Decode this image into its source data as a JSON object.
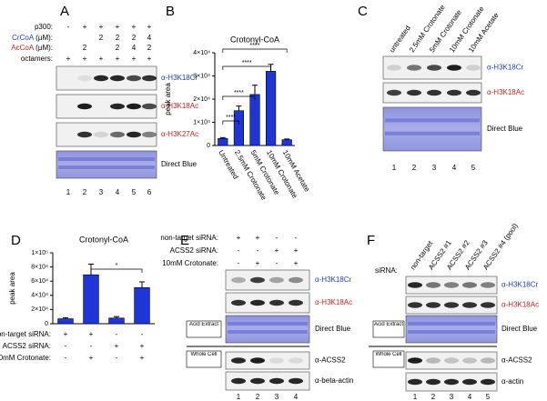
{
  "blots": {
    "A": {
      "label": "A",
      "header": [
        {
          "name": "p300:",
          "cells": [
            "-",
            "+",
            "+",
            "+",
            "+",
            "+"
          ]
        },
        {
          "name": "CrCoA",
          "unit": "(μM):",
          "cells": [
            null,
            null,
            "2",
            "2",
            "2",
            "4"
          ]
        },
        {
          "name": "AcCoA",
          "unit": "(μM):",
          "cells": [
            null,
            "2",
            null,
            "2",
            "4",
            "2"
          ]
        },
        {
          "name": "octamers:",
          "cells": [
            "+",
            "+",
            "+",
            "+",
            "+",
            "+"
          ]
        }
      ],
      "rows": [
        "α-H3K18Cr",
        "α-H3K18Ac",
        "α-H3K27Ac",
        "Direct Blue"
      ],
      "lanes": [
        1,
        2,
        3,
        4,
        5,
        6
      ]
    },
    "C": {
      "label": "C",
      "columns": [
        "untreated",
        "2.5mM Crotonate",
        "5mM Crotonate",
        "10mM Crotonate",
        "10mM Acetate"
      ],
      "rows": [
        "α-H3K18Cr",
        "α-H3K18Ac",
        "Direct Blue"
      ],
      "lanes": [
        1,
        2,
        3,
        4,
        5
      ]
    },
    "E": {
      "label": "E",
      "header": [
        {
          "name": "non-target siRNA:",
          "cells": [
            "+",
            "+",
            "-",
            "-"
          ]
        },
        {
          "name": "ACSS2 siRNA:",
          "cells": [
            "-",
            "-",
            "+",
            "+"
          ]
        },
        {
          "name": "10mM Crotonate:",
          "cells": [
            "-",
            "+",
            "-",
            "+"
          ]
        }
      ],
      "rows": [
        "α-H3K18Cr",
        "α-H3K18Ac",
        "Direct Blue",
        "α-ACSS2",
        "α-beta-actin"
      ],
      "boxes": [
        "Acid Extract",
        "Whole Cell"
      ],
      "lanes": [
        1,
        2,
        3,
        4
      ]
    },
    "F": {
      "label": "F",
      "prefix": "siRNA:",
      "columns": [
        "non-target",
        "ACSS2 #1",
        "ACSS2 #2",
        "ACSS2 #3",
        "ACSS2 #4 (pool)"
      ],
      "rows": [
        "α-H3K18Cr",
        "α-H3K18Ac",
        "Direct Blue",
        "α-ACSS2",
        "α-actin"
      ],
      "boxes": [
        "Acid Extract",
        "Whole Cell"
      ],
      "lanes": [
        1,
        2,
        3,
        4,
        5
      ]
    }
  },
  "chart_data": [
    {
      "type": "bar",
      "panel_label": "B",
      "title": "Crotonyl-CoA",
      "y_label": "peak area",
      "categories": [
        "Untreated",
        "2.5mM Crotonate",
        "5mM Crotonate",
        "10mM Crotonate",
        "10mM Acetate"
      ],
      "values": [
        3000,
        15000,
        22000,
        32000,
        2500
      ],
      "errors": [
        400,
        2000,
        4000,
        3000,
        300
      ],
      "color": "#1f35d8",
      "ylim": [
        0,
        40000
      ],
      "yticks": [
        0,
        {
          "value": 10000,
          "label": "1×10⁴"
        },
        {
          "value": 20000,
          "label": "2×10⁴"
        },
        {
          "value": 30000,
          "label": "3×10⁴"
        },
        {
          "value": 40000,
          "label": "4×10⁴"
        }
      ],
      "annotations": [
        "****",
        "****",
        "****",
        "****"
      ]
    },
    {
      "type": "bar",
      "panel_label": "D",
      "title": "Crotonyl-CoA",
      "y_label": "peak area",
      "categories": [
        null,
        null,
        null,
        null
      ],
      "values": [
        7000,
        69000,
        8000,
        51000
      ],
      "errors": [
        1500,
        15000,
        2000,
        8000
      ],
      "color": "#1f35d8",
      "ylim": [
        0,
        100000
      ],
      "yticks": [
        0,
        {
          "value": 20000,
          "label": "2×10⁴"
        },
        {
          "value": 40000,
          "label": "4×10⁴"
        },
        {
          "value": 60000,
          "label": "6×10⁴"
        },
        {
          "value": 80000,
          "label": "8×10⁴"
        },
        {
          "value": 100000,
          "label": "1×10⁵"
        }
      ],
      "annotations": [
        "*"
      ],
      "conditions": [
        {
          "name": "non-target siRNA:",
          "cells": [
            "+",
            "+",
            "-",
            "-"
          ]
        },
        {
          "name": "ACSS2 siRNA:",
          "cells": [
            "-",
            "-",
            "+",
            "+"
          ]
        },
        {
          "name": "10mM Crotonate:",
          "cells": [
            "-",
            "+",
            "-",
            "+"
          ]
        }
      ]
    }
  ]
}
